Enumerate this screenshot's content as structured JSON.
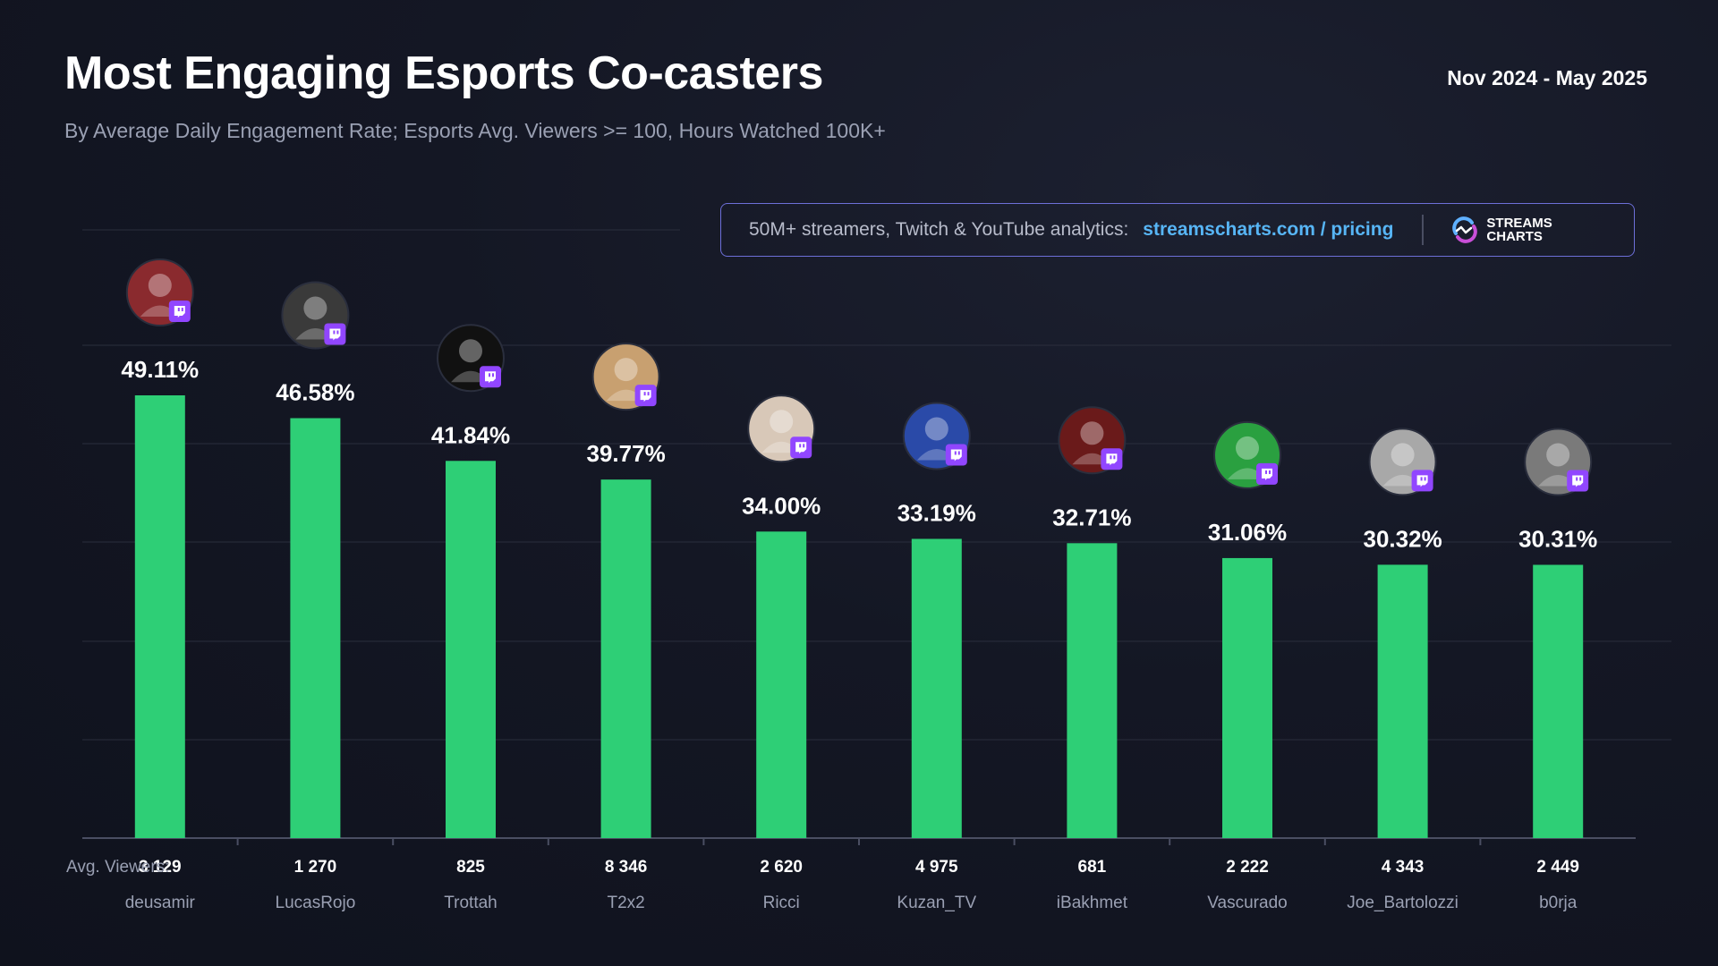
{
  "header": {
    "title": "Most Engaging Esports Co-casters",
    "subtitle": "By Average Daily Engagement Rate; Esports Avg. Viewers >= 100, Hours Watched 100K+",
    "period": "Nov 2024 - May 2025"
  },
  "promo": {
    "text": "50M+ streamers, Twitch & YouTube analytics:",
    "link": "streamscharts.com / pricing",
    "logo_line1": "STREAMS",
    "logo_line2": "CHARTS"
  },
  "colors": {
    "bar": "#2ecf76",
    "twitch": "#9146ff",
    "grid": "#2a2e3d",
    "text_muted": "#9aa0b3"
  },
  "chart_data": {
    "type": "bar",
    "categories": [
      "deusamir",
      "LucasRojo",
      "Trottah",
      "T2x2",
      "Ricci",
      "Kuzan_TV",
      "iBakhmet",
      "Vascurado",
      "Joe_Bartolozzi",
      "b0rja"
    ],
    "values": [
      49.11,
      46.58,
      41.84,
      39.77,
      34.0,
      33.19,
      32.71,
      31.06,
      30.32,
      30.31
    ],
    "value_labels": [
      "49.11%",
      "46.58%",
      "41.84%",
      "39.77%",
      "34.00%",
      "33.19%",
      "32.71%",
      "31.06%",
      "30.32%",
      "30.31%"
    ],
    "avg_viewers_label": "Avg. Viewers:",
    "avg_viewers": [
      "3 129",
      "1 270",
      "825",
      "8 346",
      "2 620",
      "4 975",
      "681",
      "2 222",
      "4 343",
      "2 449"
    ],
    "platform": "twitch",
    "ylim": [
      0,
      50
    ],
    "grid": true,
    "legend": "none"
  }
}
